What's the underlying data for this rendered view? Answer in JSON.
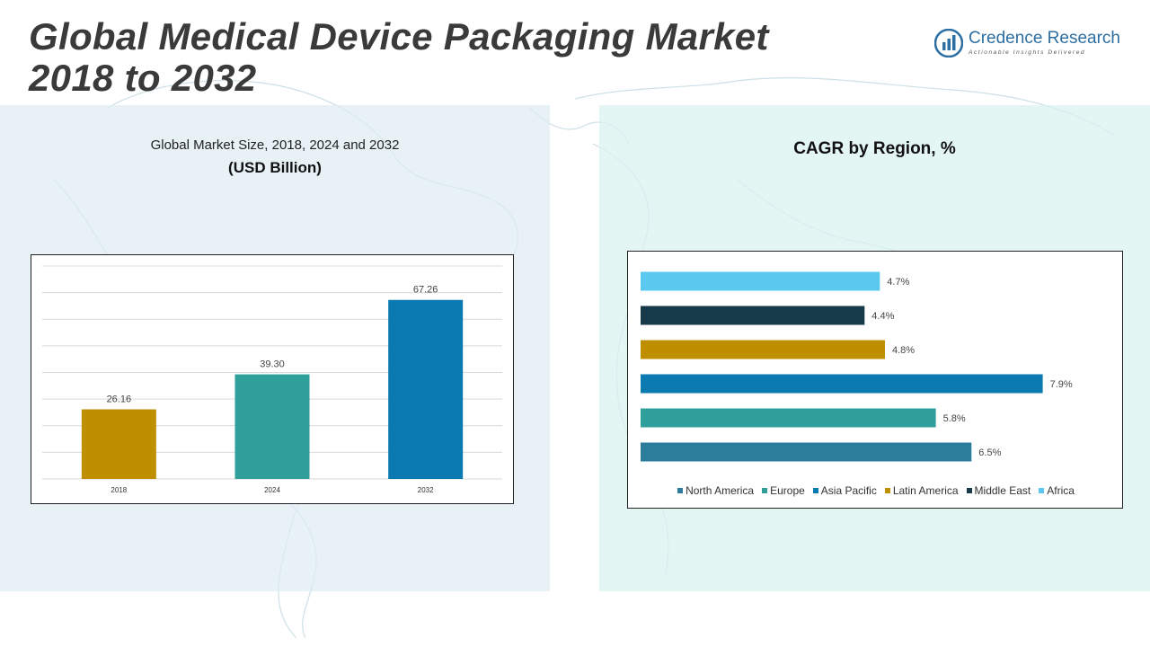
{
  "page": {
    "title_line1": "Global Medical Device Packaging Market",
    "title_line2": "2018 to 2032"
  },
  "logo": {
    "name": "Credence Research",
    "tagline": "Actionable Insights Delivered"
  },
  "chart_data": [
    {
      "type": "bar",
      "title": "Global Market Size, 2018, 2024 and 2032",
      "subtitle": "(USD Billion)",
      "categories": [
        "2018",
        "2024",
        "2032"
      ],
      "values": [
        26.16,
        39.3,
        67.26
      ],
      "value_labels": [
        "26.16",
        "39.30",
        "67.26"
      ],
      "colors": [
        "#bf8f00",
        "#2e9f9b",
        "#0a7ab0"
      ],
      "ylim": [
        0,
        80
      ],
      "grid": true
    },
    {
      "type": "bar",
      "orientation": "horizontal",
      "title": "CAGR by Region, %",
      "categories": [
        "Africa",
        "Middle East",
        "Latin America",
        "Asia Pacific",
        "Europe",
        "North America"
      ],
      "values": [
        4.7,
        4.4,
        4.8,
        7.9,
        5.8,
        6.5
      ],
      "value_labels": [
        "4.7%",
        "4.4%",
        "4.8%",
        "7.9%",
        "5.8%",
        "6.5%"
      ],
      "colors": [
        "#5bc8f0",
        "#173a4a",
        "#bf8f00",
        "#0a7ab0",
        "#2e9f9b",
        "#2c7c9c"
      ],
      "legend": {
        "position": "bottom",
        "items": [
          {
            "label": "North America",
            "color": "#2c7c9c"
          },
          {
            "label": "Europe",
            "color": "#2e9f9b"
          },
          {
            "label": "Asia Pacific",
            "color": "#0a7ab0"
          },
          {
            "label": "Latin America",
            "color": "#bf8f00"
          },
          {
            "label": "Middle East",
            "color": "#173a4a"
          },
          {
            "label": "Africa",
            "color": "#5bc8f0"
          }
        ]
      },
      "xlim": [
        0,
        8
      ]
    }
  ]
}
